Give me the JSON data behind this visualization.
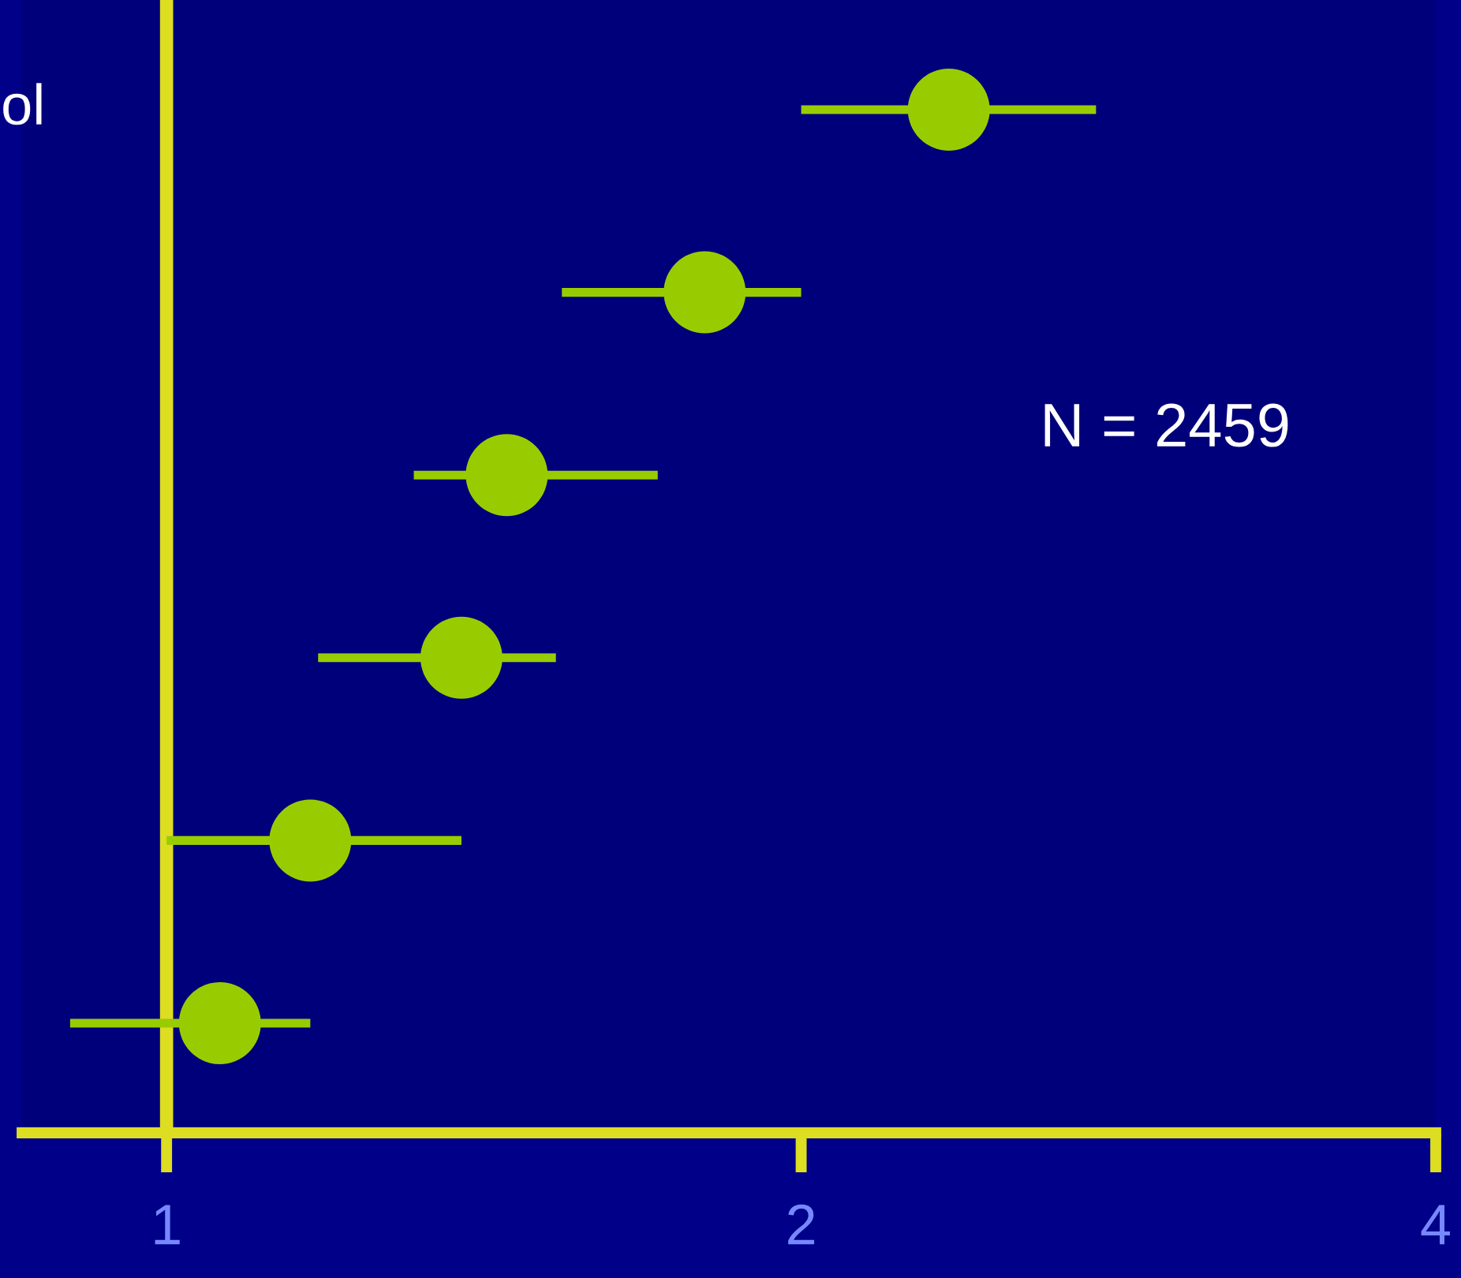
{
  "chart_data": {
    "type": "scatter",
    "orientation": "horizontal",
    "log": "x",
    "categories": [
      "ol",
      null,
      null,
      null,
      null,
      null
    ],
    "values": [
      2.35,
      1.8,
      1.45,
      1.38,
      1.17,
      1.06
    ],
    "errors": [
      [
        2.0,
        2.76
      ],
      [
        1.54,
        2.0
      ],
      [
        1.31,
        1.71
      ],
      [
        1.18,
        1.53
      ],
      [
        1.0,
        1.38
      ],
      [
        0.9,
        1.17
      ]
    ],
    "color": "#99cc00",
    "marker": "circle",
    "xlim": [
      0.854,
      4
    ],
    "xticks": [
      1,
      2,
      4
    ],
    "ref_lines": [
      {
        "axis": "x",
        "value": 1,
        "color": "#dddd22"
      }
    ],
    "annotations": [
      "N = 2459"
    ],
    "grid": false
  }
}
